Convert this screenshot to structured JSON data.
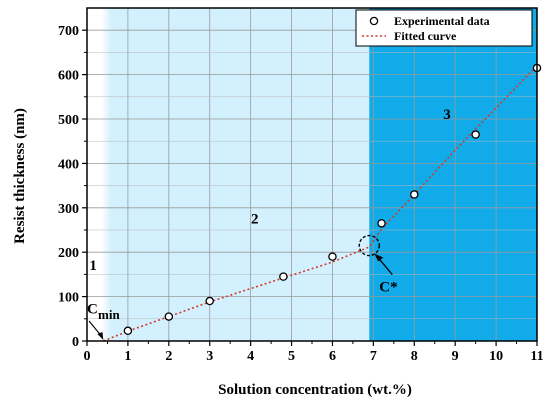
{
  "chart_data": {
    "type": "scatter",
    "xlabel": "Solution concentration (wt.%)",
    "ylabel": "Resist thickness (nm)",
    "xlim": [
      0,
      11
    ],
    "ylim": [
      0,
      750
    ],
    "xticks": [
      "0",
      "1",
      "2",
      "3",
      "4",
      "5",
      "6",
      "7",
      "8",
      "9",
      "10",
      "11"
    ],
    "yticks": [
      "0",
      "100",
      "200",
      "300",
      "400",
      "500",
      "600",
      "700"
    ],
    "grid": true,
    "legend_position": "top-right",
    "legend": {
      "experimental": "Experimental data",
      "fitted": "Fitted curve"
    },
    "series": [
      {
        "name": "Experimental data",
        "x": [
          1,
          2,
          3,
          4.8,
          6,
          7.2,
          8,
          9.5,
          11
        ],
        "y": [
          23,
          55,
          90,
          145,
          190,
          265,
          330,
          465,
          615
        ]
      },
      {
        "name": "Fitted curve",
        "x": [
          0.4,
          1,
          2,
          3,
          4,
          5,
          6,
          6.9,
          7.2,
          8,
          9,
          10,
          11
        ],
        "y": [
          0,
          22,
          55,
          88,
          118,
          148,
          178,
          212,
          252,
          330,
          430,
          525,
          620
        ]
      }
    ],
    "regions": [
      {
        "label": "1",
        "x_range": [
          0,
          0.5
        ],
        "color": "#ffffff"
      },
      {
        "label": "2",
        "x_range": [
          0.5,
          6.9
        ],
        "color": "#d2f0fd"
      },
      {
        "label": "3",
        "x_range": [
          6.9,
          11
        ],
        "color": "#10abe8"
      }
    ],
    "region_labels": [
      {
        "text": "1",
        "x": 0.15,
        "y": 160
      },
      {
        "text": "2",
        "x": 4.1,
        "y": 265
      },
      {
        "text": "3",
        "x": 8.8,
        "y": 500
      }
    ],
    "annotations": {
      "cmin": {
        "text_main": "C",
        "text_sub": "min",
        "point": [
          0.4,
          0
        ]
      },
      "cstar": {
        "text": "C*",
        "point": [
          6.9,
          215
        ]
      }
    }
  }
}
